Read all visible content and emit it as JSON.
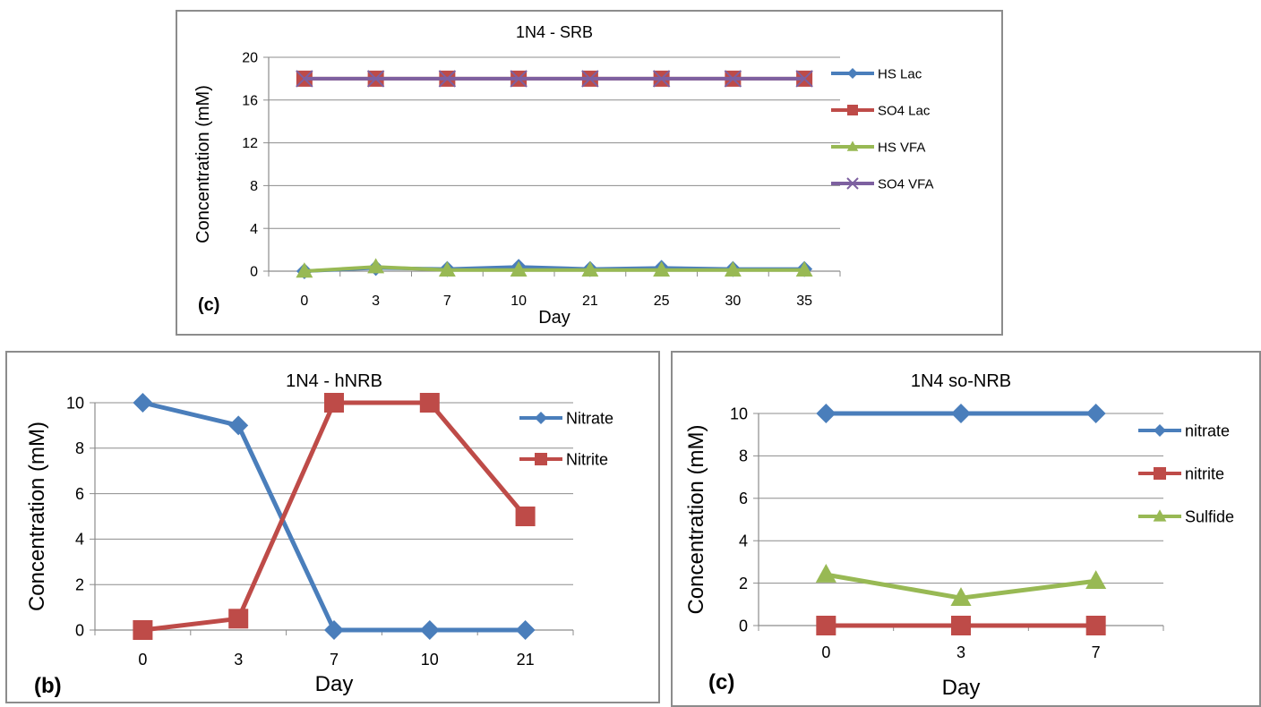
{
  "chart_data": [
    {
      "type": "line",
      "title": "1N4 - SRB",
      "xlabel": "Day",
      "ylabel": "Concentration (mM)",
      "panel_label": "(c)",
      "categories": [
        "0",
        "3",
        "7",
        "10",
        "21",
        "25",
        "30",
        "35"
      ],
      "ylim": [
        0,
        20
      ],
      "yticks": [
        0,
        4,
        8,
        12,
        16,
        20
      ],
      "grid": true,
      "legend_position": "right",
      "series": [
        {
          "name": "HS Lac",
          "color": "#4a7ebb",
          "marker": "diamond",
          "values": [
            0,
            0.3,
            0.2,
            0.4,
            0.2,
            0.3,
            0.2,
            0.2
          ]
        },
        {
          "name": "SO4 Lac",
          "color": "#be4b48",
          "marker": "square",
          "values": [
            18,
            18,
            18,
            18,
            18,
            18,
            18,
            18
          ]
        },
        {
          "name": "HS VFA",
          "color": "#98b954",
          "marker": "triangle",
          "values": [
            0,
            0.4,
            0.1,
            0.1,
            0.1,
            0.1,
            0.1,
            0.1
          ]
        },
        {
          "name": "SO4 VFA",
          "color": "#7d60a0",
          "marker": "x",
          "values": [
            18,
            18,
            18,
            18,
            18,
            18,
            18,
            18
          ]
        }
      ]
    },
    {
      "type": "line",
      "title": "1N4 - hNRB",
      "xlabel": "Day",
      "ylabel": "Concentration (mM)",
      "panel_label": "(b)",
      "categories": [
        "0",
        "3",
        "7",
        "10",
        "21"
      ],
      "ylim": [
        0,
        10
      ],
      "yticks": [
        0,
        2,
        4,
        6,
        8,
        10
      ],
      "grid": true,
      "legend_position": "right",
      "series": [
        {
          "name": "Nitrate",
          "color": "#4a7ebb",
          "marker": "diamond",
          "values": [
            10,
            9,
            0,
            0,
            0
          ]
        },
        {
          "name": "Nitrite",
          "color": "#be4b48",
          "marker": "square",
          "values": [
            0,
            0.5,
            10,
            10,
            5
          ]
        }
      ]
    },
    {
      "type": "line",
      "title": "1N4 so-NRB",
      "xlabel": "Day",
      "ylabel": "Concentration (mM)",
      "panel_label": "(c)",
      "categories": [
        "0",
        "3",
        "7"
      ],
      "ylim": [
        0,
        10
      ],
      "yticks": [
        0,
        2,
        4,
        6,
        8,
        10
      ],
      "grid": true,
      "legend_position": "right",
      "series": [
        {
          "name": "nitrate",
          "color": "#4a7ebb",
          "marker": "diamond",
          "values": [
            10,
            10,
            10
          ]
        },
        {
          "name": "nitrite",
          "color": "#be4b48",
          "marker": "square",
          "values": [
            0,
            0,
            0
          ]
        },
        {
          "name": "Sulfide",
          "color": "#98b954",
          "marker": "triangle",
          "values": [
            2.4,
            1.3,
            2.1
          ]
        }
      ]
    }
  ]
}
